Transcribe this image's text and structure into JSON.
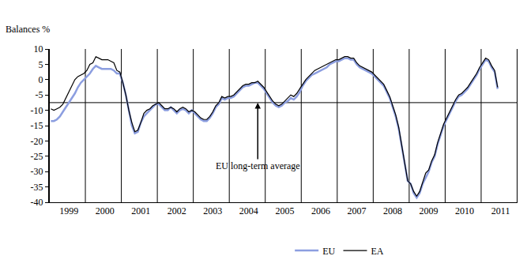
{
  "chart_data": {
    "type": "line",
    "y_label": "Balances %",
    "categories": [
      null,
      null,
      null,
      null,
      null,
      null,
      "1999",
      null,
      null,
      null,
      null,
      null,
      null,
      null,
      null,
      null,
      null,
      null,
      "2000",
      null,
      null,
      null,
      null,
      null,
      null,
      null,
      null,
      null,
      null,
      null,
      "2001",
      null,
      null,
      null,
      null,
      null,
      null,
      null,
      null,
      null,
      null,
      null,
      "2002",
      null,
      null,
      null,
      null,
      null,
      null,
      null,
      null,
      null,
      null,
      null,
      "2003",
      null,
      null,
      null,
      null,
      null,
      null,
      null,
      null,
      null,
      null,
      null,
      "2004",
      null,
      null,
      null,
      null,
      null,
      null,
      null,
      null,
      null,
      null,
      null,
      "2005",
      null,
      null,
      null,
      null,
      null,
      null,
      null,
      null,
      null,
      null,
      null,
      "2006",
      null,
      null,
      null,
      null,
      null,
      null,
      null,
      null,
      null,
      null,
      null,
      "2007",
      null,
      null,
      null,
      null,
      null,
      null,
      null,
      null,
      null,
      null,
      null,
      "2008",
      null,
      null,
      null,
      null,
      null,
      null,
      null,
      null,
      null,
      null,
      null,
      "2009",
      null,
      null,
      null,
      null,
      null,
      null,
      null,
      null,
      null,
      null,
      null,
      "2010",
      null,
      null,
      null,
      null,
      null,
      null,
      null,
      null,
      null,
      null,
      null,
      "2011",
      null,
      null,
      null,
      null,
      null
    ],
    "series": [
      {
        "name": "EU",
        "color": "#8c9ee0",
        "values": [
          -13.5,
          -13.5,
          -13,
          -12,
          -10.5,
          -9,
          -7.5,
          -6,
          -4.5,
          -2.5,
          -1,
          0,
          1,
          2,
          3.5,
          4.5,
          4,
          3.5,
          3.5,
          3.5,
          3.5,
          3,
          2,
          2,
          -1,
          -5,
          -10,
          -15,
          -17.5,
          -17,
          -14,
          -12,
          -11,
          -10,
          -9,
          -8,
          -8,
          -9,
          -10,
          -10,
          -9,
          -10,
          -11,
          -10,
          -9.5,
          -10,
          -11,
          -10,
          -11,
          -12,
          -13,
          -13.5,
          -13.5,
          -12.5,
          -11,
          -9,
          -8,
          -6,
          -6.5,
          -6,
          -6,
          -5.5,
          -4.5,
          -3.5,
          -2.5,
          -2,
          -2,
          -1.5,
          -1,
          -1,
          -2,
          -3,
          -4.5,
          -6,
          -7.5,
          -8.5,
          -9,
          -8.5,
          -7.5,
          -7,
          -6,
          -6.5,
          -5.5,
          -4,
          -2,
          -0.5,
          0.5,
          1.5,
          2,
          2.5,
          3,
          3.5,
          4,
          5,
          5.5,
          6,
          6,
          6.5,
          7,
          7,
          6.5,
          6.5,
          5,
          4,
          3.5,
          3,
          2.5,
          2,
          1,
          0,
          -1,
          -2,
          -4,
          -6,
          -9,
          -12,
          -16,
          -22,
          -28,
          -33,
          -34,
          -37,
          -38.5,
          -37,
          -34,
          -32,
          -30,
          -27,
          -25,
          -21,
          -18,
          -15,
          -13,
          -11,
          -9,
          -7,
          -5.5,
          -5,
          -4,
          -3,
          -1.5,
          0,
          1.5,
          3.5,
          5,
          6.5,
          6,
          4,
          2.5,
          -3,
          null,
          null,
          null,
          null,
          null,
          null
        ]
      },
      {
        "name": "EA",
        "color": "#000000",
        "values": [
          -9.5,
          -10,
          -9.5,
          -9,
          -8,
          -6,
          -4,
          -2,
          0,
          1,
          1.5,
          2,
          3,
          5,
          5.5,
          7.5,
          7,
          6.5,
          6.5,
          6.5,
          6,
          5.5,
          3,
          2.5,
          -1,
          -5,
          -10,
          -14,
          -17,
          -16.5,
          -14,
          -11,
          -10,
          -9.5,
          -8.5,
          -8,
          -7.5,
          -8.5,
          -9.5,
          -9.5,
          -9,
          -9.5,
          -10.5,
          -9.5,
          -9,
          -9.5,
          -10.5,
          -10,
          -10.5,
          -11.5,
          -12.5,
          -13,
          -13,
          -12,
          -10.5,
          -8.5,
          -7.5,
          -5.5,
          -6,
          -5.5,
          -5.5,
          -5,
          -4,
          -3,
          -2,
          -1.5,
          -1.5,
          -1,
          -1,
          -0.5,
          -1.5,
          -2.5,
          -4,
          -5.5,
          -7,
          -8,
          -8.5,
          -8,
          -7,
          -6,
          -5,
          -5.5,
          -4.5,
          -3,
          -1.5,
          0,
          1,
          2,
          3,
          3.5,
          4,
          4.5,
          5,
          5.5,
          6,
          6.5,
          6.5,
          7,
          7.5,
          7.5,
          7,
          7,
          5.5,
          4.5,
          4,
          3.5,
          3,
          2.5,
          1.5,
          0.5,
          -0.5,
          -1.5,
          -3.5,
          -5.5,
          -8.5,
          -11.5,
          -15.5,
          -21.5,
          -28,
          -33,
          -34,
          -36.5,
          -38,
          -36.5,
          -33.5,
          -30.5,
          -29.5,
          -26.5,
          -24.5,
          -20.5,
          -17.5,
          -14.5,
          -12.5,
          -10.5,
          -8.5,
          -6.5,
          -5,
          -4.5,
          -3.5,
          -2.5,
          -1,
          0.5,
          2,
          4,
          5.5,
          7,
          6.5,
          4.5,
          3,
          -2.5,
          null,
          null,
          null,
          null,
          null,
          null
        ]
      }
    ],
    "ylim": [
      -40,
      10
    ],
    "yticks": [
      -40,
      -35,
      -30,
      -25,
      -20,
      -15,
      -10,
      -5,
      0,
      5,
      10
    ],
    "grid": true,
    "legend": "bottom",
    "reference_line": {
      "value": -7.5,
      "label": "EU long-term average"
    }
  }
}
